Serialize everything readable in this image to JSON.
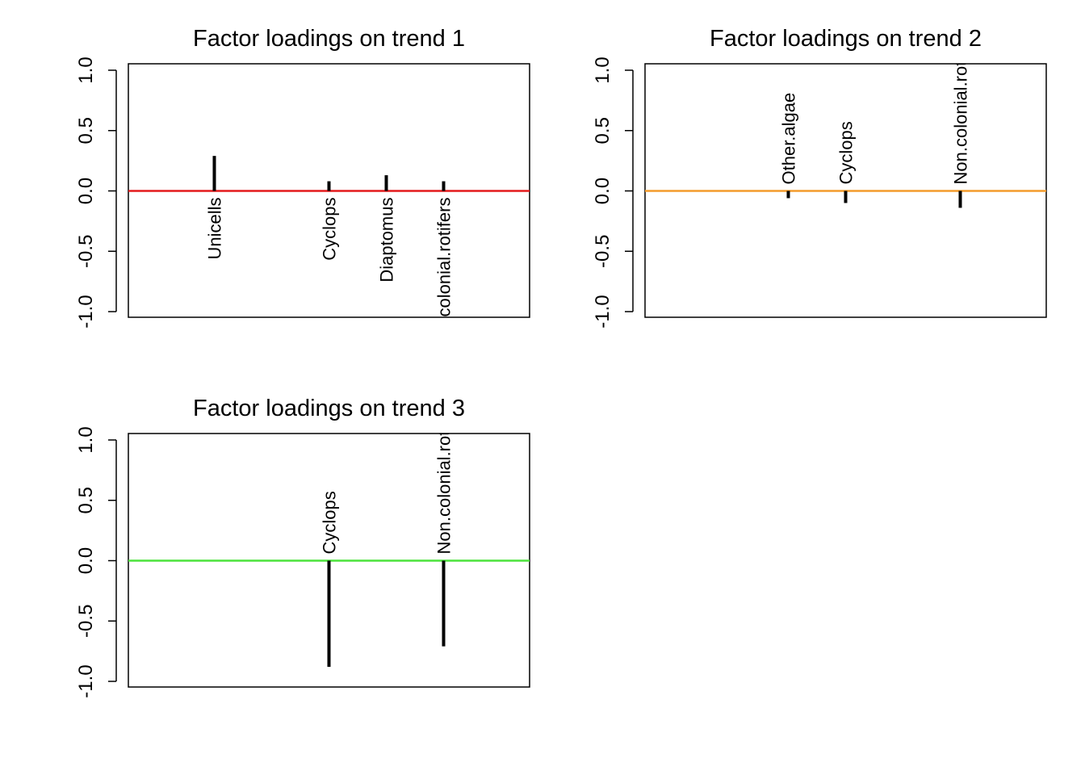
{
  "chart_data": [
    {
      "type": "bar",
      "title": "Factor loadings on trend 1",
      "zero_line_color": "#e41a1c",
      "ylim": [
        -1.0,
        1.0
      ],
      "yticks": [
        "-1.0",
        "-0.5",
        "0.0",
        "0.5",
        "1.0"
      ],
      "category_count": 7,
      "bars": [
        {
          "index": 1,
          "label": "Unicells",
          "value": 0.29
        },
        {
          "index": 3,
          "label": "Cyclops",
          "value": 0.08
        },
        {
          "index": 4,
          "label": "Diaptomus",
          "value": 0.13
        },
        {
          "index": 5,
          "label": "Non.colonial.rotifers",
          "value": 0.08
        }
      ]
    },
    {
      "type": "bar",
      "title": "Factor loadings on trend 2",
      "zero_line_color": "#f39c2b",
      "ylim": [
        -1.0,
        1.0
      ],
      "yticks": [
        "-1.0",
        "-0.5",
        "0.0",
        "0.5",
        "1.0"
      ],
      "category_count": 7,
      "bars": [
        {
          "index": 2,
          "label": "Other.algae",
          "value": -0.06
        },
        {
          "index": 3,
          "label": "Cyclops",
          "value": -0.1
        },
        {
          "index": 5,
          "label": "Non.colonial.rotifers",
          "value": -0.14
        }
      ]
    },
    {
      "type": "bar",
      "title": "Factor loadings on trend 3",
      "zero_line_color": "#4be33b",
      "ylim": [
        -1.0,
        1.0
      ],
      "yticks": [
        "-1.0",
        "-0.5",
        "0.0",
        "0.5",
        "1.0"
      ],
      "category_count": 7,
      "bars": [
        {
          "index": 3,
          "label": "Cyclops",
          "value": -0.88
        },
        {
          "index": 5,
          "label": "Non.colonial.rotifers",
          "value": -0.71
        }
      ]
    }
  ]
}
